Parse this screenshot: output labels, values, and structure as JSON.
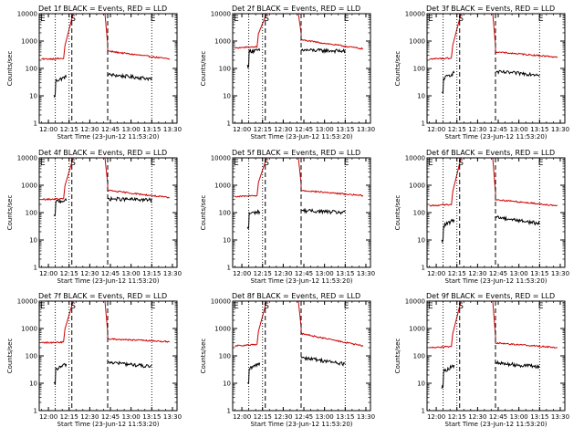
{
  "figure": {
    "x_axis_label": "Start Time (23-Jun-12 11:53:20)",
    "y_axis_label": "Counts/sec",
    "x_tick_labels": [
      "12:00",
      "12:15",
      "12:30",
      "12:45",
      "13:00",
      "13:15",
      "13:30"
    ],
    "y_tick_labels": [
      "1",
      "10",
      "100",
      "1000",
      "10000"
    ],
    "event_markers": [
      "E",
      "S",
      "E"
    ],
    "colors": {
      "events": "#000000",
      "lld": "#d00000",
      "background": "#ffffff"
    }
  },
  "chart_data": [
    {
      "type": "line",
      "title": "Det 1f BLACK = Events, RED = LLD",
      "xlabel": "Start Time (23-Jun-12 11:53:20)",
      "ylabel": "Counts/sec",
      "log_y": true,
      "ylim": [
        1,
        10000
      ],
      "xlim": [
        "11:53:20",
        "13:33:20"
      ],
      "series": [
        {
          "name": "Events",
          "color": "black",
          "segments": [
            {
              "x": [
                "12:04",
                "12:13"
              ],
              "start": 33,
              "end": 50
            },
            {
              "x": [
                "12:43",
                "13:15"
              ],
              "start": 60,
              "end": 42
            }
          ]
        },
        {
          "name": "LLD",
          "color": "red",
          "segments": [
            {
              "x": [
                "11:55",
                "12:11"
              ],
              "start": 220,
              "end": 230
            },
            {
              "x": [
                "12:43",
                "13:28"
              ],
              "start": 430,
              "end": 220
            }
          ]
        }
      ],
      "dotted_lines": [
        "12:05",
        "12:15",
        "13:15"
      ],
      "dashed_lines": [
        "12:17",
        "12:43"
      ]
    },
    {
      "type": "line",
      "title": "Det 2f BLACK = Events, RED = LLD",
      "xlabel": "Start Time (23-Jun-12 11:53:20)",
      "ylabel": "Counts/sec",
      "log_y": true,
      "ylim": [
        1,
        10000
      ],
      "xlim": [
        "11:53:20",
        "13:33:20"
      ],
      "series": [
        {
          "name": "Events",
          "color": "black",
          "segments": [
            {
              "x": [
                "12:04",
                "12:13"
              ],
              "start": 420,
              "end": 460
            },
            {
              "x": [
                "12:43",
                "13:15"
              ],
              "start": 470,
              "end": 430
            }
          ]
        },
        {
          "name": "LLD",
          "color": "red",
          "segments": [
            {
              "x": [
                "11:55",
                "12:11"
              ],
              "start": 560,
              "end": 620
            },
            {
              "x": [
                "12:43",
                "13:28"
              ],
              "start": 1100,
              "end": 520
            }
          ]
        }
      ],
      "dotted_lines": [
        "12:05",
        "12:15",
        "13:15"
      ],
      "dashed_lines": [
        "12:17",
        "12:43"
      ]
    },
    {
      "type": "line",
      "title": "Det 3f BLACK = Events, RED = LLD",
      "xlabel": "Start Time (23-Jun-12 11:53:20)",
      "ylabel": "Counts/sec",
      "log_y": true,
      "ylim": [
        1,
        10000
      ],
      "xlim": [
        "11:53:20",
        "13:33:20"
      ],
      "series": [
        {
          "name": "Events",
          "color": "black",
          "segments": [
            {
              "x": [
                "12:04",
                "12:13"
              ],
              "start": 40,
              "end": 70
            },
            {
              "x": [
                "12:43",
                "13:15"
              ],
              "start": 75,
              "end": 60
            }
          ]
        },
        {
          "name": "LLD",
          "color": "red",
          "segments": [
            {
              "x": [
                "11:55",
                "12:11"
              ],
              "start": 220,
              "end": 240
            },
            {
              "x": [
                "12:43",
                "13:28"
              ],
              "start": 400,
              "end": 260
            }
          ]
        }
      ],
      "dotted_lines": [
        "12:05",
        "12:15",
        "13:15"
      ],
      "dashed_lines": [
        "12:17",
        "12:43"
      ]
    },
    {
      "type": "line",
      "title": "Det 4f BLACK = Events, RED = LLD",
      "xlabel": "Start Time (23-Jun-12 11:53:20)",
      "ylabel": "Counts/sec",
      "log_y": true,
      "ylim": [
        1,
        10000
      ],
      "xlim": [
        "11:53:20",
        "13:33:20"
      ],
      "series": [
        {
          "name": "Events",
          "color": "black",
          "segments": [
            {
              "x": [
                "12:04",
                "12:13"
              ],
              "start": 250,
              "end": 280
            },
            {
              "x": [
                "12:43",
                "13:15"
              ],
              "start": 320,
              "end": 290
            }
          ]
        },
        {
          "name": "LLD",
          "color": "red",
          "segments": [
            {
              "x": [
                "11:55",
                "12:11"
              ],
              "start": 300,
              "end": 320
            },
            {
              "x": [
                "12:43",
                "13:28"
              ],
              "start": 650,
              "end": 350
            }
          ]
        }
      ],
      "dotted_lines": [
        "12:05",
        "12:15",
        "13:15"
      ],
      "dashed_lines": [
        "12:17",
        "12:43"
      ]
    },
    {
      "type": "line",
      "title": "Det 5f BLACK = Events, RED = LLD",
      "xlabel": "Start Time (23-Jun-12 11:53:20)",
      "ylabel": "Counts/sec",
      "log_y": true,
      "ylim": [
        1,
        10000
      ],
      "xlim": [
        "11:53:20",
        "13:33:20"
      ],
      "series": [
        {
          "name": "Events",
          "color": "black",
          "segments": [
            {
              "x": [
                "12:04",
                "12:13"
              ],
              "start": 90,
              "end": 110
            },
            {
              "x": [
                "12:43",
                "13:15"
              ],
              "start": 120,
              "end": 100
            }
          ]
        },
        {
          "name": "LLD",
          "color": "red",
          "segments": [
            {
              "x": [
                "11:55",
                "12:11"
              ],
              "start": 380,
              "end": 420
            },
            {
              "x": [
                "12:43",
                "13:28"
              ],
              "start": 650,
              "end": 420
            }
          ]
        }
      ],
      "dotted_lines": [
        "12:05",
        "12:15",
        "13:15"
      ],
      "dashed_lines": [
        "12:17",
        "12:43"
      ]
    },
    {
      "type": "line",
      "title": "Det 6f BLACK = Events, RED = LLD",
      "xlabel": "Start Time (23-Jun-12 11:53:20)",
      "ylabel": "Counts/sec",
      "log_y": true,
      "ylim": [
        1,
        10000
      ],
      "xlim": [
        "11:53:20",
        "13:33:20"
      ],
      "series": [
        {
          "name": "Events",
          "color": "black",
          "segments": [
            {
              "x": [
                "12:04",
                "12:13"
              ],
              "start": 30,
              "end": 55
            },
            {
              "x": [
                "12:43",
                "13:15"
              ],
              "start": 70,
              "end": 40
            }
          ]
        },
        {
          "name": "LLD",
          "color": "red",
          "segments": [
            {
              "x": [
                "11:55",
                "12:11"
              ],
              "start": 180,
              "end": 200
            },
            {
              "x": [
                "12:43",
                "13:28"
              ],
              "start": 300,
              "end": 180
            }
          ]
        }
      ],
      "dotted_lines": [
        "12:05",
        "12:15",
        "13:15"
      ],
      "dashed_lines": [
        "12:17",
        "12:43"
      ]
    },
    {
      "type": "line",
      "title": "Det 7f BLACK = Events, RED = LLD",
      "xlabel": "Start Time (23-Jun-12 11:53:20)",
      "ylabel": "Counts/sec",
      "log_y": true,
      "ylim": [
        1,
        10000
      ],
      "xlim": [
        "11:53:20",
        "13:33:20"
      ],
      "series": [
        {
          "name": "Events",
          "color": "black",
          "segments": [
            {
              "x": [
                "12:04",
                "12:13"
              ],
              "start": 30,
              "end": 50
            },
            {
              "x": [
                "12:43",
                "13:15"
              ],
              "start": 60,
              "end": 40
            }
          ]
        },
        {
          "name": "LLD",
          "color": "red",
          "segments": [
            {
              "x": [
                "11:55",
                "12:11"
              ],
              "start": 300,
              "end": 320
            },
            {
              "x": [
                "12:43",
                "13:28"
              ],
              "start": 420,
              "end": 330
            }
          ]
        }
      ],
      "dotted_lines": [
        "12:05",
        "12:15",
        "13:15"
      ],
      "dashed_lines": [
        "12:17",
        "12:43"
      ]
    },
    {
      "type": "line",
      "title": "Det 8f BLACK = Events, RED = LLD",
      "xlabel": "Start Time (23-Jun-12 11:53:20)",
      "ylabel": "Counts/sec",
      "log_y": true,
      "ylim": [
        1,
        10000
      ],
      "xlim": [
        "11:53:20",
        "13:33:20"
      ],
      "series": [
        {
          "name": "Events",
          "color": "black",
          "segments": [
            {
              "x": [
                "12:04",
                "12:13"
              ],
              "start": 30,
              "end": 55
            },
            {
              "x": [
                "12:43",
                "13:15"
              ],
              "start": 90,
              "end": 50
            }
          ]
        },
        {
          "name": "LLD",
          "color": "red",
          "segments": [
            {
              "x": [
                "11:55",
                "12:11"
              ],
              "start": 230,
              "end": 260
            },
            {
              "x": [
                "12:43",
                "13:28"
              ],
              "start": 650,
              "end": 230
            }
          ]
        }
      ],
      "dotted_lines": [
        "12:05",
        "12:15",
        "13:15"
      ],
      "dashed_lines": [
        "12:17",
        "12:43"
      ]
    },
    {
      "type": "line",
      "title": "Det 9f BLACK = Events, RED = LLD",
      "xlabel": "Start Time (23-Jun-12 11:53:20)",
      "ylabel": "Counts/sec",
      "log_y": true,
      "ylim": [
        1,
        10000
      ],
      "xlim": [
        "11:53:20",
        "13:33:20"
      ],
      "series": [
        {
          "name": "Events",
          "color": "black",
          "segments": [
            {
              "x": [
                "12:04",
                "12:13"
              ],
              "start": 25,
              "end": 45
            },
            {
              "x": [
                "12:43",
                "13:15"
              ],
              "start": 55,
              "end": 40
            }
          ]
        },
        {
          "name": "LLD",
          "color": "red",
          "segments": [
            {
              "x": [
                "11:55",
                "12:11"
              ],
              "start": 200,
              "end": 220
            },
            {
              "x": [
                "12:43",
                "13:28"
              ],
              "start": 300,
              "end": 200
            }
          ]
        }
      ],
      "dotted_lines": [
        "12:05",
        "12:15",
        "13:15"
      ],
      "dashed_lines": [
        "12:17",
        "12:43"
      ]
    }
  ]
}
